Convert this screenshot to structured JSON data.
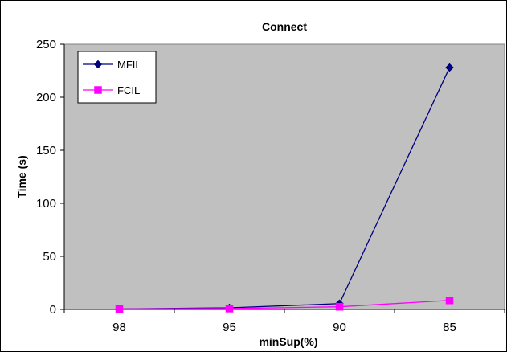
{
  "chart_data": {
    "type": "line",
    "title": "Connect",
    "xlabel": "minSup(%)",
    "ylabel": "Time (s)",
    "categories": [
      "98",
      "95",
      "90",
      "85"
    ],
    "ylim": [
      0,
      250
    ],
    "yticks": [
      0,
      50,
      100,
      150,
      200,
      250
    ],
    "grid": false,
    "legend_position": "top-left",
    "plot_background": "#C0C0C0",
    "series": [
      {
        "name": "MFIL",
        "values": [
          0.5,
          1.5,
          5.5,
          228
        ],
        "color": "#000080",
        "marker": "diamond"
      },
      {
        "name": "FCIL",
        "values": [
          0.5,
          0.8,
          2.5,
          8.5
        ],
        "color": "#FF00FF",
        "marker": "square"
      }
    ]
  }
}
